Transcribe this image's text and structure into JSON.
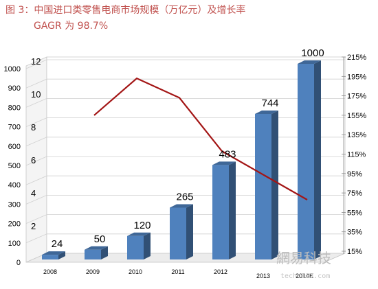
{
  "chart_data": {
    "type": "bar",
    "title": "图 3：中国进口类零售电商市场规模（万亿元）及增长率",
    "subtitle": "GAGR 为 98.7%",
    "categories": [
      "2008",
      "2009",
      "2010",
      "2011",
      "2012",
      "2013",
      "2014E"
    ],
    "series": [
      {
        "type": "bar",
        "values": [
          24,
          50,
          120,
          265,
          483,
          744,
          1000
        ]
      },
      {
        "type": "line",
        "values": [
          null,
          155,
          193,
          173,
          118,
          93,
          68
        ]
      }
    ],
    "y_left_ticks": [
      "0",
      "100",
      "200",
      "300",
      "400",
      "500",
      "600",
      "700",
      "800",
      "900",
      "1000"
    ],
    "y_left_range": [
      0,
      1000
    ],
    "y_overlay_ticks": [
      "2",
      "4",
      "6",
      "8",
      "10",
      "12"
    ],
    "y_right_ticks": [
      "15%",
      "35%",
      "55%",
      "75%",
      "95%",
      "115%",
      "135%",
      "155%",
      "175%",
      "195%",
      "215%"
    ],
    "y_right_range": [
      15,
      215
    ],
    "colors": {
      "bar": "#4f81bd",
      "line": "#a31515",
      "title": "#c0504d"
    },
    "watermark": {
      "text": "網易科技",
      "url": "tech.163.com"
    }
  }
}
